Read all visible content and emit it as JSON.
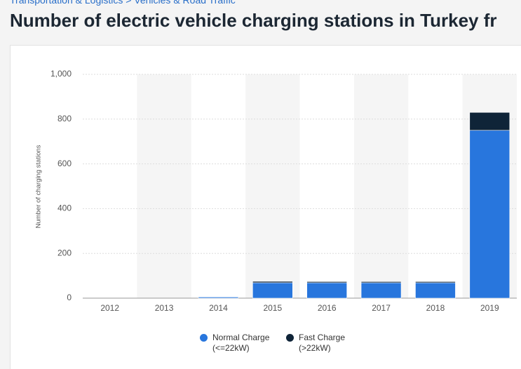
{
  "breadcrumb": "Transportation & Logistics > Vehicles & Road Traffic",
  "chart_data": {
    "type": "stacked_bar",
    "title": "Number of electric vehicle charging stations in Turkey fr",
    "y_label": "Number of charging stations",
    "categories": [
      "2012",
      "2013",
      "2014",
      "2015",
      "2016",
      "2017",
      "2018",
      "2019"
    ],
    "series": [
      {
        "name": "Normal Charge (<=22kW)",
        "color": "#2876dd",
        "values": [
          0,
          0,
          5,
          69,
          69,
          69,
          69,
          750
        ]
      },
      {
        "name": "Fast Charge (>22kW)",
        "color": "#0f2438",
        "values": [
          0,
          0,
          0,
          6,
          5,
          5,
          5,
          80
        ]
      }
    ],
    "ylim": [
      0,
      1000
    ],
    "yticks": [
      0,
      200,
      400,
      600,
      800,
      {
        "value": 1000,
        "label": "1,000"
      }
    ],
    "grid": true
  }
}
